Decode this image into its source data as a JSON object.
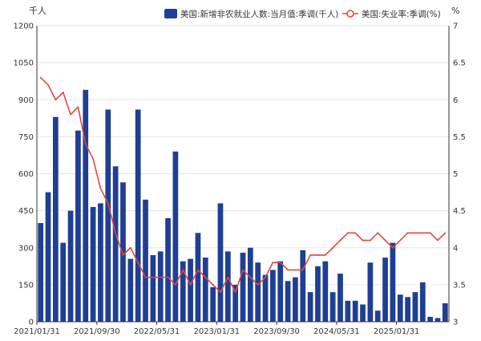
{
  "chart_data": {
    "type": "bar",
    "colors": {
      "bar": "#1f3f94",
      "line": "#e0473f",
      "grid": "#e6e6e6",
      "axis": "#333333"
    },
    "left_unit": "千人",
    "right_unit": "%",
    "legend": {
      "placement": "top-right",
      "items": [
        {
          "label": "美国:新增非农就业人数:当月值:季调(千人)",
          "kind": "bar"
        },
        {
          "label": "美国:失业率:季调(%)",
          "kind": "line"
        }
      ]
    },
    "y_left": {
      "min": 0,
      "max": 1200,
      "ticks": [
        "0",
        "150",
        "300",
        "450",
        "600",
        "750",
        "900",
        "1050",
        "1200"
      ]
    },
    "y_right": {
      "min": 3,
      "max": 7,
      "ticks": [
        "3",
        "3.5",
        "4",
        "4.5",
        "5",
        "5.5",
        "6",
        "6.5",
        "7"
      ]
    },
    "x_ticks": [
      {
        "index": 0,
        "label": "2021/01/31"
      },
      {
        "index": 8,
        "label": "2021/09/30"
      },
      {
        "index": 16,
        "label": "2022/05/31"
      },
      {
        "index": 24,
        "label": "2023/01/31"
      },
      {
        "index": 32,
        "label": "2023/09/30"
      },
      {
        "index": 40,
        "label": "2024/05/31"
      },
      {
        "index": 48,
        "label": "2025/01/31"
      }
    ],
    "grid": true,
    "series": [
      {
        "name": "美国:新增非农就业人数:当月值:季调(千人)",
        "type": "bar",
        "axis": "left",
        "values": [
          400,
          525,
          830,
          320,
          450,
          775,
          940,
          465,
          480,
          860,
          630,
          565,
          255,
          860,
          495,
          270,
          285,
          420,
          690,
          245,
          255,
          360,
          260,
          140,
          480,
          285,
          150,
          280,
          300,
          240,
          190,
          210,
          245,
          165,
          180,
          290,
          120,
          225,
          245,
          120,
          195,
          85,
          85,
          70,
          240,
          45,
          260,
          320,
          110,
          100,
          120,
          160,
          20,
          15,
          75
        ]
      },
      {
        "name": "美国:失业率:季调(%)",
        "type": "line",
        "axis": "right",
        "values": [
          6.3,
          6.2,
          6.0,
          6.1,
          5.8,
          5.9,
          5.4,
          5.2,
          4.8,
          4.6,
          4.2,
          3.9,
          4.0,
          3.8,
          3.6,
          3.6,
          3.6,
          3.6,
          3.5,
          3.7,
          3.5,
          3.7,
          3.6,
          3.5,
          3.4,
          3.6,
          3.4,
          3.7,
          3.6,
          3.5,
          3.6,
          3.8,
          3.8,
          3.7,
          3.7,
          3.7,
          3.9,
          3.9,
          3.9,
          4.0,
          4.1,
          4.2,
          4.2,
          4.1,
          4.1,
          4.2,
          4.1,
          4.0,
          4.1,
          4.2,
          4.2,
          4.2,
          4.2,
          4.1,
          4.2
        ]
      }
    ]
  }
}
